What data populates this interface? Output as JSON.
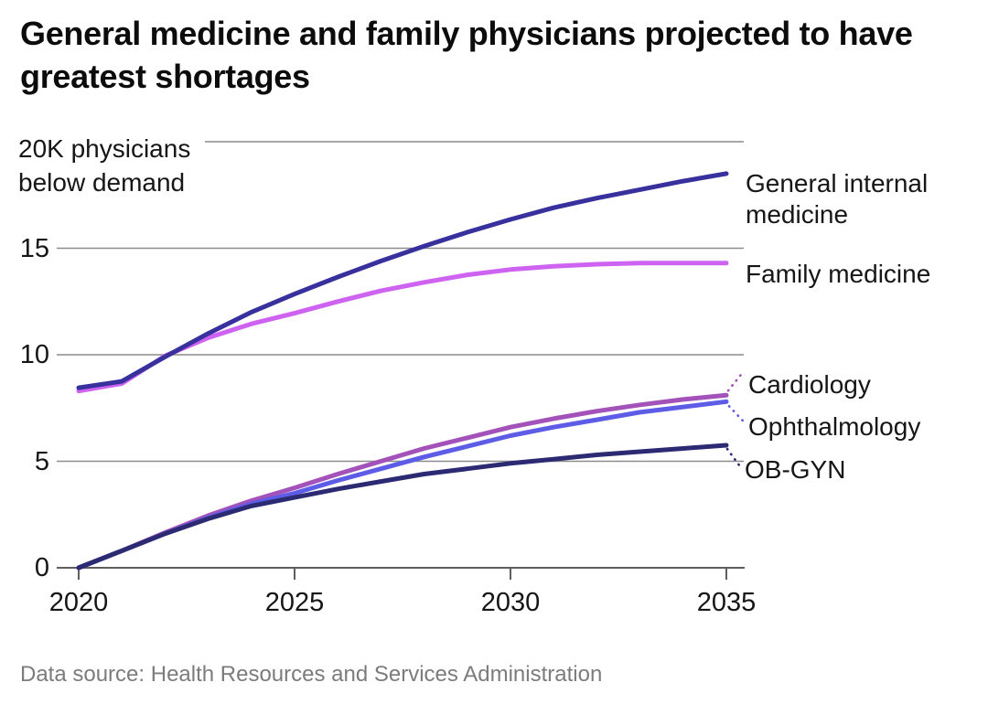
{
  "title": "General medicine and family physicians projected to have greatest shortages",
  "source": "Data source: Health Resources and Services Administration",
  "chart_data": {
    "type": "line",
    "title": "General medicine and family physicians projected to have greatest shortages",
    "y_annotation": "20K physicians below demand",
    "xlabel": "",
    "ylabel": "physicians below demand (thousands)",
    "x": [
      2020,
      2021,
      2022,
      2023,
      2024,
      2025,
      2026,
      2027,
      2028,
      2029,
      2030,
      2031,
      2032,
      2033,
      2034,
      2035
    ],
    "xticks": [
      2020,
      2025,
      2030,
      2035
    ],
    "yticks": [
      0,
      5,
      10,
      15,
      20
    ],
    "ylim": [
      0,
      20
    ],
    "xlim": [
      2020,
      2035
    ],
    "grid": "horizontal",
    "legend_position": "right-edge-direct-labels",
    "axis_color": "#5e5e5e",
    "grid_color": "#8c8c8c",
    "series": [
      {
        "name": "General internal medicine",
        "color": "#37309d",
        "values": [
          8.45,
          8.75,
          9.9,
          11.0,
          12.0,
          12.85,
          13.65,
          14.4,
          15.1,
          15.75,
          16.35,
          16.9,
          17.35,
          17.75,
          18.15,
          18.5
        ]
      },
      {
        "name": "Family medicine",
        "color": "#ce62f1",
        "values": [
          8.3,
          8.65,
          9.95,
          10.8,
          11.45,
          11.95,
          12.5,
          13.0,
          13.4,
          13.75,
          14.0,
          14.15,
          14.25,
          14.3,
          14.3,
          14.3
        ]
      },
      {
        "name": "Cardiology",
        "color": "#a352ba",
        "values": [
          0,
          0.8,
          1.65,
          2.45,
          3.15,
          3.75,
          4.4,
          5.0,
          5.6,
          6.1,
          6.6,
          7.0,
          7.35,
          7.65,
          7.9,
          8.1
        ]
      },
      {
        "name": "Ophthalmology",
        "color": "#5d5ce6",
        "values": [
          0,
          0.8,
          1.6,
          2.35,
          3.0,
          3.5,
          4.1,
          4.65,
          5.2,
          5.7,
          6.2,
          6.6,
          6.95,
          7.3,
          7.55,
          7.8
        ]
      },
      {
        "name": "OB-GYN",
        "color": "#2b2a72",
        "values": [
          0,
          0.8,
          1.6,
          2.3,
          2.9,
          3.3,
          3.7,
          4.05,
          4.4,
          4.65,
          4.9,
          5.1,
          5.3,
          5.45,
          5.6,
          5.75
        ]
      }
    ]
  }
}
